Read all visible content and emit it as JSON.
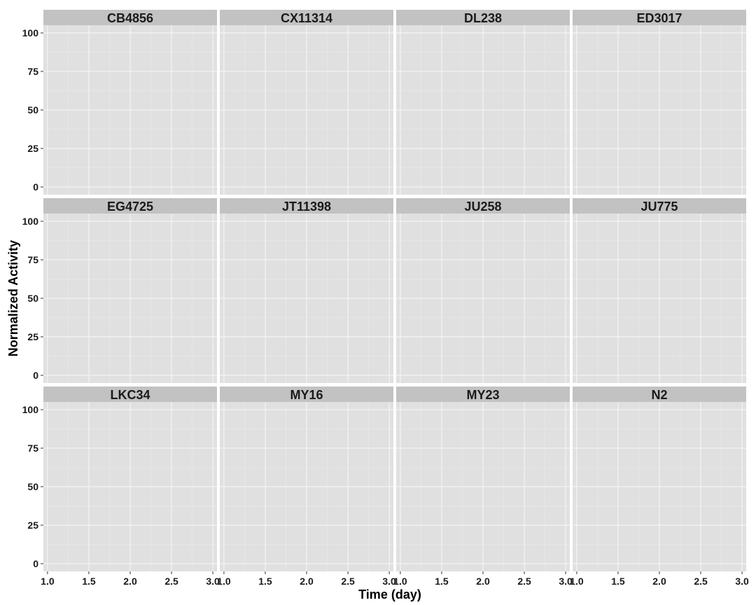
{
  "chart_data": {
    "type": "line",
    "layout": "facet-grid",
    "xlabel": "Time (day)",
    "ylabel": "Normalized Activity",
    "xlim": [
      0.95,
      3.05
    ],
    "ylim": [
      -5,
      105
    ],
    "x_ticks": [
      "1.0",
      "1.5",
      "2.0",
      "2.5",
      "3.0"
    ],
    "y_ticks": [
      "0",
      "25",
      "50",
      "75",
      "100"
    ],
    "x_tick_values": [
      1.0,
      1.5,
      2.0,
      2.5,
      3.0
    ],
    "y_tick_values": [
      0,
      25,
      50,
      75,
      100
    ],
    "grid": true,
    "panels": [
      {
        "label": "CB4856",
        "series": []
      },
      {
        "label": "CX11314",
        "series": []
      },
      {
        "label": "DL238",
        "series": []
      },
      {
        "label": "ED3017",
        "series": []
      },
      {
        "label": "EG4725",
        "series": []
      },
      {
        "label": "JT11398",
        "series": []
      },
      {
        "label": "JU258",
        "series": []
      },
      {
        "label": "JU775",
        "series": []
      },
      {
        "label": "LKC34",
        "series": []
      },
      {
        "label": "MY16",
        "series": []
      },
      {
        "label": "MY23",
        "series": []
      },
      {
        "label": "N2",
        "series": []
      }
    ],
    "colors": {
      "panel_background": "#e0e0e0",
      "strip_background": "#c2c2c2",
      "grid_major": "#f4f4f4",
      "grid_minor": "#ebebeb"
    }
  }
}
